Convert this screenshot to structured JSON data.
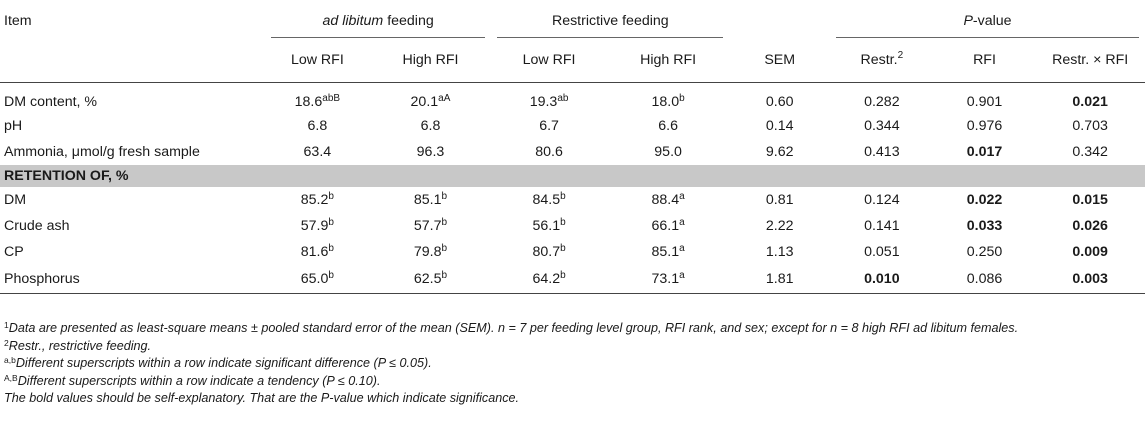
{
  "header": {
    "item": "Item",
    "adlib_em": "ad libitum",
    "adlib_rest": " feeding",
    "restrictive": "Restrictive feeding",
    "pvalue_em": "P",
    "pvalue_rest": "-value",
    "low_rfi": "Low RFI",
    "high_rfi": "High RFI",
    "sem": "SEM",
    "restr": "Restr.",
    "restr_sup": "2",
    "rfi": "RFI",
    "restr_x_rfi": "Restr. × RFI"
  },
  "rows_top": [
    {
      "label": "DM content, %",
      "c1": "18.6",
      "c1s": "abB",
      "c2": "20.1",
      "c2s": "aA",
      "c3": "19.3",
      "c3s": "ab",
      "c4": "18.0",
      "c4s": "b",
      "sem": "0.60",
      "p1": "0.282",
      "p2": "0.901",
      "p3": "0.021"
    },
    {
      "label": "pH",
      "c1": "6.8",
      "c1s": "",
      "c2": "6.8",
      "c2s": "",
      "c3": "6.7",
      "c3s": "",
      "c4": "6.6",
      "c4s": "",
      "sem": "0.14",
      "p1": "0.344",
      "p2": "0.976",
      "p3": "0.703"
    },
    {
      "label": "Ammonia, μmol/g fresh sample",
      "c1": "63.4",
      "c1s": "",
      "c2": "96.3",
      "c2s": "",
      "c3": "80.6",
      "c3s": "",
      "c4": "95.0",
      "c4s": "",
      "sem": "9.62",
      "p1": "0.413",
      "p2": "0.017",
      "p3": "0.342"
    }
  ],
  "section_label": "RETENTION OF, %",
  "rows_bottom": [
    {
      "label": "DM",
      "c1": "85.2",
      "c1s": "b",
      "c2": "85.1",
      "c2s": "b",
      "c3": "84.5",
      "c3s": "b",
      "c4": "88.4",
      "c4s": "a",
      "sem": "0.81",
      "p1": "0.124",
      "p2": "0.022",
      "p3": "0.015"
    },
    {
      "label": "Crude ash",
      "c1": "57.9",
      "c1s": "b",
      "c2": "57.7",
      "c2s": "b",
      "c3": "56.1",
      "c3s": "b",
      "c4": "66.1",
      "c4s": "a",
      "sem": "2.22",
      "p1": "0.141",
      "p2": "0.033",
      "p3": "0.026"
    },
    {
      "label": "CP",
      "c1": "81.6",
      "c1s": "b",
      "c2": "79.8",
      "c2s": "b",
      "c3": "80.7",
      "c3s": "b",
      "c4": "85.1",
      "c4s": "a",
      "sem": "1.13",
      "p1": "0.051",
      "p2": "0.250",
      "p3": "0.009"
    },
    {
      "label": "Phosphorus",
      "c1": "65.0",
      "c1s": "b",
      "c2": "62.5",
      "c2s": "b",
      "c3": "64.2",
      "c3s": "b",
      "c4": "73.1",
      "c4s": "a",
      "sem": "1.81",
      "p1": "0.010",
      "p2": "0.086",
      "p3": "0.003"
    }
  ],
  "footnotes": {
    "n1_sup": "1",
    "n1": "Data are presented as least-square means ± pooled standard error of the mean (SEM). n = 7 per feeding level group, RFI rank, and sex; except for n = 8 high RFI ad libitum females.",
    "n2_sup": "2",
    "n2": "Restr., restrictive feeding.",
    "n3_sup": "a,b",
    "n3": "Different superscripts within a row indicate significant difference (P ≤ 0.05).",
    "n4_sup": "A,B",
    "n4": "Different superscripts within a row indicate a tendency (P ≤ 0.10).",
    "n5": "The bold values should be self-explanatory. That are the P-value which indicate significance."
  }
}
